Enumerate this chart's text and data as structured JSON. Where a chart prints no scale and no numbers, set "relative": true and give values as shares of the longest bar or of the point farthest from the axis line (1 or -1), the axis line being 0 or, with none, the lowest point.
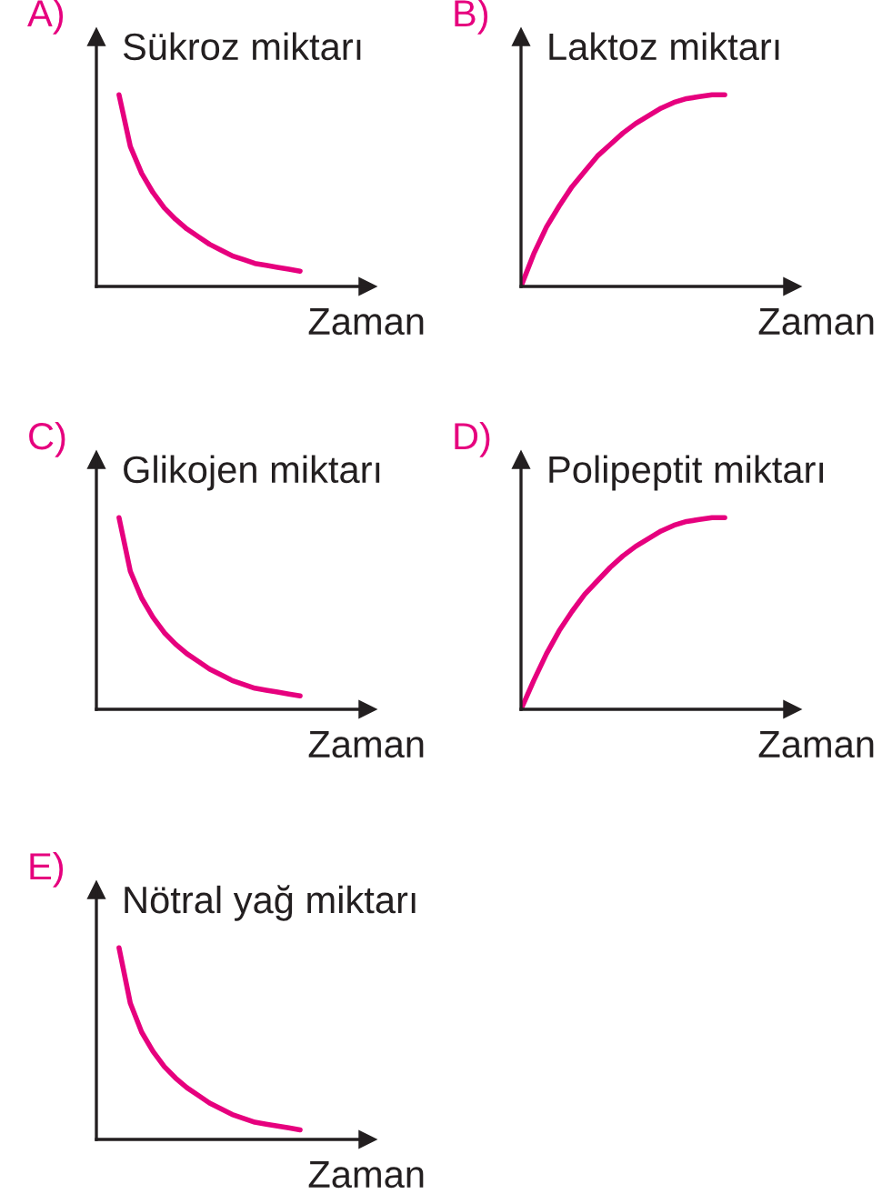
{
  "chart_data": [
    {
      "type": "line",
      "title": "A)",
      "ylabel": "Sükroz miktarı",
      "xlabel": "Zaman",
      "relative": true,
      "categories": [
        null,
        null,
        null,
        null,
        null,
        null,
        null,
        null,
        null,
        null,
        null,
        null,
        null,
        null,
        null,
        null,
        null,
        null,
        null
      ],
      "series": [
        {
          "color": "#e6007e",
          "values": [
            null,
            null,
            1,
            0.73,
            0.59,
            0.49,
            0.41,
            0.35,
            0.3,
            0.26,
            0.22,
            0.19,
            0.16,
            0.14,
            0.12,
            0.11,
            0.1,
            0.09,
            0.08
          ]
        }
      ]
    },
    {
      "type": "line",
      "title": "B)",
      "ylabel": "Laktoz miktarı",
      "xlabel": "Zaman",
      "relative": true,
      "categories": [
        null,
        null,
        null,
        null,
        null,
        null,
        null,
        null,
        null,
        null,
        null,
        null,
        null,
        null,
        null,
        null,
        null
      ],
      "series": [
        {
          "color": "#e6007e",
          "values": [
            0,
            0.17,
            0.31,
            0.42,
            0.52,
            0.6,
            0.68,
            0.74,
            0.8,
            0.85,
            0.89,
            0.93,
            0.96,
            0.98,
            0.99,
            1,
            1
          ]
        }
      ]
    },
    {
      "type": "line",
      "title": "C)",
      "ylabel": "Glikojen miktarı",
      "xlabel": "Zaman",
      "relative": true,
      "categories": [
        null,
        null,
        null,
        null,
        null,
        null,
        null,
        null,
        null,
        null,
        null,
        null,
        null,
        null,
        null,
        null,
        null,
        null,
        null
      ],
      "series": [
        {
          "color": "#e6007e",
          "values": [
            null,
            null,
            1,
            0.72,
            0.58,
            0.48,
            0.4,
            0.34,
            0.29,
            0.25,
            0.21,
            0.18,
            0.15,
            0.13,
            0.11,
            0.1,
            0.09,
            0.08,
            0.07
          ]
        }
      ]
    },
    {
      "type": "line",
      "title": "D)",
      "ylabel": "Polipeptit miktarı",
      "xlabel": "Zaman",
      "relative": true,
      "categories": [
        null,
        null,
        null,
        null,
        null,
        null,
        null,
        null,
        null,
        null,
        null,
        null,
        null,
        null,
        null,
        null,
        null
      ],
      "series": [
        {
          "color": "#e6007e",
          "values": [
            0,
            0.15,
            0.29,
            0.41,
            0.51,
            0.6,
            0.67,
            0.74,
            0.8,
            0.85,
            0.89,
            0.93,
            0.96,
            0.98,
            0.99,
            1,
            1
          ]
        }
      ]
    },
    {
      "type": "line",
      "title": "E)",
      "ylabel": "Nötral yağ miktarı",
      "xlabel": "Zaman",
      "relative": true,
      "categories": [
        null,
        null,
        null,
        null,
        null,
        null,
        null,
        null,
        null,
        null,
        null,
        null,
        null,
        null,
        null,
        null,
        null,
        null,
        null
      ],
      "series": [
        {
          "color": "#e6007e",
          "values": [
            null,
            null,
            1,
            0.71,
            0.56,
            0.46,
            0.38,
            0.32,
            0.27,
            0.23,
            0.19,
            0.16,
            0.13,
            0.11,
            0.09,
            0.08,
            0.07,
            0.06,
            0.05
          ]
        }
      ]
    }
  ]
}
